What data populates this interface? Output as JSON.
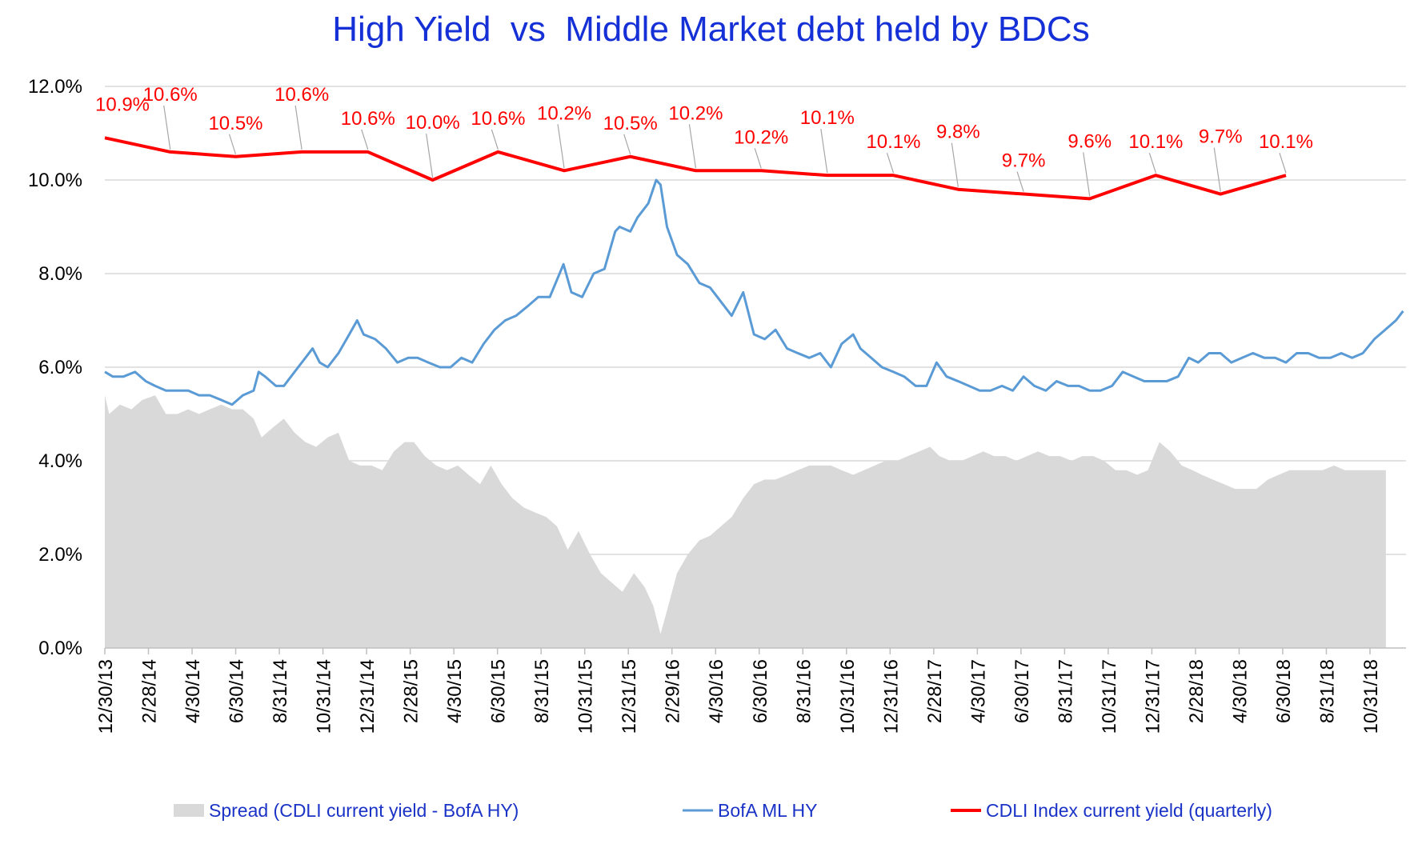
{
  "chart_data": {
    "type": "line",
    "title": "High Yield  vs  Middle Market debt held by BDCs",
    "xlabel": "",
    "ylabel": "",
    "ylim": [
      0,
      12
    ],
    "grid": true,
    "legend_position": "bottom",
    "y_ticks": [
      "0.0%",
      "2.0%",
      "4.0%",
      "6.0%",
      "8.0%",
      "10.0%",
      "12.0%"
    ],
    "x_tick_labels": [
      "12/30/13",
      "2/28/14",
      "4/30/14",
      "6/30/14",
      "8/31/14",
      "10/31/14",
      "12/31/14",
      "2/28/15",
      "4/30/15",
      "6/30/15",
      "8/31/15",
      "10/31/15",
      "12/31/15",
      "2/29/16",
      "4/30/16",
      "6/30/16",
      "8/31/16",
      "10/31/16",
      "12/31/16",
      "2/28/17",
      "4/30/17",
      "6/30/17",
      "8/31/17",
      "10/31/17",
      "12/31/17",
      "2/28/18",
      "4/30/18",
      "6/30/18",
      "8/31/18",
      "10/31/18"
    ],
    "x_range": [
      "2013-12-30",
      "2018-12-14"
    ],
    "series": [
      {
        "name": "Spread (CDLI current yield - BofA HY)",
        "type": "area",
        "color": "#d9d9d9",
        "x": [
          "2013-12-30",
          "2014-01-05",
          "2014-01-20",
          "2014-02-05",
          "2014-02-20",
          "2014-03-10",
          "2014-03-25",
          "2014-04-10",
          "2014-04-25",
          "2014-05-10",
          "2014-05-25",
          "2014-06-10",
          "2014-06-25",
          "2014-07-10",
          "2014-07-25",
          "2014-08-05",
          "2014-08-20",
          "2014-09-05",
          "2014-09-20",
          "2014-10-05",
          "2014-10-20",
          "2014-11-05",
          "2014-11-20",
          "2014-12-05",
          "2014-12-20",
          "2015-01-05",
          "2015-01-20",
          "2015-02-05",
          "2015-02-20",
          "2015-03-05",
          "2015-03-20",
          "2015-04-05",
          "2015-04-20",
          "2015-05-05",
          "2015-05-20",
          "2015-06-05",
          "2015-06-20",
          "2015-07-05",
          "2015-07-20",
          "2015-08-05",
          "2015-08-20",
          "2015-09-05",
          "2015-09-20",
          "2015-10-05",
          "2015-10-20",
          "2015-11-05",
          "2015-11-20",
          "2015-12-05",
          "2015-12-20",
          "2016-01-05",
          "2016-01-20",
          "2016-02-01",
          "2016-02-11",
          "2016-02-20",
          "2016-03-05",
          "2016-03-20",
          "2016-04-05",
          "2016-04-20",
          "2016-05-05",
          "2016-05-20",
          "2016-06-05",
          "2016-06-20",
          "2016-07-05",
          "2016-07-20",
          "2016-08-05",
          "2016-08-20",
          "2016-09-05",
          "2016-09-20",
          "2016-10-05",
          "2016-10-20",
          "2016-11-05",
          "2016-11-20",
          "2016-12-05",
          "2016-12-20",
          "2017-01-05",
          "2017-01-20",
          "2017-02-05",
          "2017-02-20",
          "2017-03-05",
          "2017-03-20",
          "2017-04-05",
          "2017-04-20",
          "2017-05-05",
          "2017-05-20",
          "2017-06-05",
          "2017-06-20",
          "2017-07-05",
          "2017-07-20",
          "2017-08-05",
          "2017-08-20",
          "2017-09-05",
          "2017-09-20",
          "2017-10-05",
          "2017-10-20",
          "2017-11-05",
          "2017-11-20",
          "2017-12-05",
          "2017-12-20",
          "2018-01-05",
          "2018-01-20",
          "2018-02-05",
          "2018-02-20",
          "2018-03-05",
          "2018-03-20",
          "2018-04-05",
          "2018-04-20",
          "2018-05-05",
          "2018-05-20",
          "2018-06-05",
          "2018-06-20",
          "2018-07-05",
          "2018-07-20",
          "2018-08-05",
          "2018-08-20",
          "2018-09-05",
          "2018-09-20",
          "2018-10-05",
          "2018-10-20",
          "2018-11-05",
          "2018-11-16"
        ],
        "values": [
          5.4,
          5.0,
          5.2,
          5.1,
          5.3,
          5.4,
          5.0,
          5.0,
          5.1,
          5.0,
          5.1,
          5.2,
          5.1,
          5.1,
          4.9,
          4.5,
          4.7,
          4.9,
          4.6,
          4.4,
          4.3,
          4.5,
          4.6,
          4.0,
          3.9,
          3.9,
          3.8,
          4.2,
          4.4,
          4.4,
          4.1,
          3.9,
          3.8,
          3.9,
          3.7,
          3.5,
          3.9,
          3.5,
          3.2,
          3.0,
          2.9,
          2.8,
          2.6,
          2.1,
          2.5,
          2.0,
          1.6,
          1.4,
          1.2,
          1.6,
          1.3,
          0.9,
          0.3,
          0.8,
          1.6,
          2.0,
          2.3,
          2.4,
          2.6,
          2.8,
          3.2,
          3.5,
          3.6,
          3.6,
          3.7,
          3.8,
          3.9,
          3.9,
          3.9,
          3.8,
          3.7,
          3.8,
          3.9,
          4.0,
          4.0,
          4.1,
          4.2,
          4.3,
          4.1,
          4.0,
          4.0,
          4.1,
          4.2,
          4.1,
          4.1,
          4.0,
          4.1,
          4.2,
          4.1,
          4.1,
          4.0,
          4.1,
          4.1,
          4.0,
          3.8,
          3.8,
          3.7,
          3.8,
          4.4,
          4.2,
          3.9,
          3.8,
          3.7,
          3.6,
          3.5,
          3.4,
          3.4,
          3.4,
          3.6,
          3.7,
          3.8,
          3.8,
          3.8,
          3.8,
          3.9,
          3.8,
          3.8,
          3.8,
          3.8,
          3.8
        ]
      },
      {
        "name": "BofA ML HY",
        "type": "line",
        "color": "#5b9bd5",
        "x": [
          "2013-12-30",
          "2014-01-10",
          "2014-01-25",
          "2014-02-10",
          "2014-02-25",
          "2014-03-10",
          "2014-03-25",
          "2014-04-10",
          "2014-04-25",
          "2014-05-10",
          "2014-05-25",
          "2014-06-10",
          "2014-06-25",
          "2014-07-10",
          "2014-07-25",
          "2014-08-01",
          "2014-08-10",
          "2014-08-25",
          "2014-09-05",
          "2014-09-20",
          "2014-10-05",
          "2014-10-15",
          "2014-10-25",
          "2014-11-05",
          "2014-11-20",
          "2014-12-05",
          "2014-12-16",
          "2014-12-25",
          "2015-01-10",
          "2015-01-25",
          "2015-02-10",
          "2015-02-25",
          "2015-03-10",
          "2015-03-25",
          "2015-04-10",
          "2015-04-25",
          "2015-05-10",
          "2015-05-25",
          "2015-06-10",
          "2015-06-25",
          "2015-07-10",
          "2015-07-25",
          "2015-08-10",
          "2015-08-25",
          "2015-09-10",
          "2015-09-29",
          "2015-10-10",
          "2015-10-25",
          "2015-11-10",
          "2015-11-25",
          "2015-12-10",
          "2015-12-16",
          "2015-12-31",
          "2016-01-10",
          "2016-01-25",
          "2016-02-05",
          "2016-02-11",
          "2016-02-20",
          "2016-03-05",
          "2016-03-20",
          "2016-04-05",
          "2016-04-20",
          "2016-05-05",
          "2016-05-20",
          "2016-06-05",
          "2016-06-20",
          "2016-07-05",
          "2016-07-20",
          "2016-08-05",
          "2016-08-20",
          "2016-09-05",
          "2016-09-20",
          "2016-10-05",
          "2016-10-20",
          "2016-11-05",
          "2016-11-15",
          "2016-11-30",
          "2016-12-15",
          "2016-12-31",
          "2017-01-15",
          "2017-01-31",
          "2017-02-15",
          "2017-03-01",
          "2017-03-15",
          "2017-03-31",
          "2017-04-15",
          "2017-04-30",
          "2017-05-15",
          "2017-05-31",
          "2017-06-15",
          "2017-06-30",
          "2017-07-15",
          "2017-07-31",
          "2017-08-15",
          "2017-08-31",
          "2017-09-15",
          "2017-09-30",
          "2017-10-15",
          "2017-10-31",
          "2017-11-15",
          "2017-11-30",
          "2017-12-15",
          "2017-12-31",
          "2018-01-15",
          "2018-01-31",
          "2018-02-15",
          "2018-02-28",
          "2018-03-15",
          "2018-03-31",
          "2018-04-15",
          "2018-04-30",
          "2018-05-15",
          "2018-05-31",
          "2018-06-15",
          "2018-06-30",
          "2018-07-15",
          "2018-07-31",
          "2018-08-15",
          "2018-08-31",
          "2018-09-15",
          "2018-09-30",
          "2018-10-15",
          "2018-10-31",
          "2018-11-15",
          "2018-11-30",
          "2018-12-10"
        ],
        "values": [
          5.9,
          5.8,
          5.8,
          5.9,
          5.7,
          5.6,
          5.5,
          5.5,
          5.5,
          5.4,
          5.4,
          5.3,
          5.2,
          5.4,
          5.5,
          5.9,
          5.8,
          5.6,
          5.6,
          5.9,
          6.2,
          6.4,
          6.1,
          6.0,
          6.3,
          6.7,
          7.0,
          6.7,
          6.6,
          6.4,
          6.1,
          6.2,
          6.2,
          6.1,
          6.0,
          6.0,
          6.2,
          6.1,
          6.5,
          6.8,
          7.0,
          7.1,
          7.3,
          7.5,
          7.5,
          8.2,
          7.6,
          7.5,
          8.0,
          8.1,
          8.9,
          9.0,
          8.9,
          9.2,
          9.5,
          10.0,
          9.9,
          9.0,
          8.4,
          8.2,
          7.8,
          7.7,
          7.4,
          7.1,
          7.6,
          6.7,
          6.6,
          6.8,
          6.4,
          6.3,
          6.2,
          6.3,
          6.0,
          6.5,
          6.7,
          6.4,
          6.2,
          6.0,
          5.9,
          5.8,
          5.6,
          5.6,
          6.1,
          5.8,
          5.7,
          5.6,
          5.5,
          5.5,
          5.6,
          5.5,
          5.8,
          5.6,
          5.5,
          5.7,
          5.6,
          5.6,
          5.5,
          5.5,
          5.6,
          5.9,
          5.8,
          5.7,
          5.7,
          5.7,
          5.8,
          6.2,
          6.1,
          6.3,
          6.3,
          6.1,
          6.2,
          6.3,
          6.2,
          6.2,
          6.1,
          6.3,
          6.3,
          6.2,
          6.2,
          6.3,
          6.2,
          6.3,
          6.6,
          6.8,
          7.0,
          7.2
        ]
      },
      {
        "name": "CDLI Index current yield (quarterly)",
        "type": "line",
        "color": "#ff0000",
        "x": [
          "2013-12-30",
          "2014-03-31",
          "2014-06-30",
          "2014-09-30",
          "2014-12-31",
          "2015-03-31",
          "2015-06-30",
          "2015-09-30",
          "2015-12-31",
          "2016-03-31",
          "2016-06-30",
          "2016-09-30",
          "2016-12-31",
          "2017-03-31",
          "2017-06-30",
          "2017-09-30",
          "2017-12-31",
          "2018-03-31",
          "2018-06-30"
        ],
        "values": [
          10.9,
          10.6,
          10.5,
          10.6,
          10.6,
          10.0,
          10.6,
          10.2,
          10.5,
          10.2,
          10.2,
          10.1,
          10.1,
          9.8,
          9.7,
          9.6,
          10.1,
          9.7,
          10.1
        ],
        "data_labels": [
          "10.9%",
          "10.6%",
          "10.5%",
          "10.6%",
          "10.6%",
          "10.0%",
          "10.6%",
          "10.2%",
          "10.5%",
          "10.2%",
          "10.2%",
          "10.1%",
          "10.1%",
          "9.8%",
          "9.7%",
          "9.6%",
          "10.1%",
          "9.7%",
          "10.1%"
        ]
      }
    ]
  }
}
